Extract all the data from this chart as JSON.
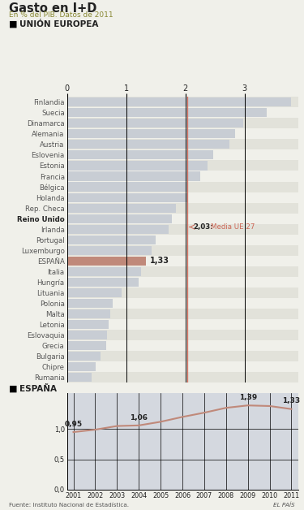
{
  "title": "Gasto en I+D",
  "subtitle": "En % del PIB. Datos de 2011",
  "section1": "UNIÓN EUROPEA",
  "section2": "ESPAÑA",
  "countries": [
    "Finlandia",
    "Suecia",
    "Dinamarca",
    "Alemania",
    "Austria",
    "Eslovenia",
    "Estonia",
    "Francia",
    "Bélgica",
    "Holanda",
    "Rep. Checa",
    "Reino Unido",
    "Irlanda",
    "Portugal",
    "Luxemburgo",
    "ESPAÑA",
    "Italia",
    "Hungría",
    "Lituania",
    "Polonia",
    "Malta",
    "Letonia",
    "Eslovaquia",
    "Grecia",
    "Bulgaria",
    "Chipre",
    "Rumania"
  ],
  "values": [
    3.78,
    3.37,
    2.98,
    2.84,
    2.75,
    2.47,
    2.38,
    2.25,
    2.04,
    2.04,
    1.84,
    1.77,
    1.72,
    1.5,
    1.43,
    1.33,
    1.25,
    1.21,
    0.92,
    0.77,
    0.73,
    0.7,
    0.68,
    0.67,
    0.57,
    0.48,
    0.42
  ],
  "bar_color_default": "#c8cdd4",
  "bar_color_españa": "#c0897a",
  "eu_average": 2.03,
  "eu_average_label": "2,03:",
  "eu_average_label2": "Media UE 27",
  "xlim": [
    0,
    3.9
  ],
  "xticks": [
    0,
    1,
    2,
    3
  ],
  "españa_label": "1,33",
  "time_series_years": [
    2001,
    2002,
    2003,
    2004,
    2005,
    2006,
    2007,
    2008,
    2009,
    2010,
    2011
  ],
  "time_series_values": [
    0.95,
    0.99,
    1.05,
    1.06,
    1.12,
    1.2,
    1.27,
    1.35,
    1.39,
    1.38,
    1.33
  ],
  "ts_annotations": {
    "2001": "0,95",
    "2004": "1,06",
    "2009": "1,39",
    "2011": "1,33"
  },
  "ts_ylim": [
    0,
    1.6
  ],
  "ts_yticks": [
    0.0,
    0.5,
    1.0
  ],
  "ts_ytick_labels": [
    "0,0",
    "0,5",
    "1,0"
  ],
  "line_color": "#c0897a",
  "fill_color": "#d4d8df",
  "bg_color": "#f0f0ea",
  "text_color_normal": "#555555",
  "text_color_bold": "#222222",
  "text_color_subtitle": "#888833",
  "row_color_alt": "#e2e2da",
  "source": "Fuente: Instituto Nacional de Estadística.",
  "credit": "EL PAÍS"
}
